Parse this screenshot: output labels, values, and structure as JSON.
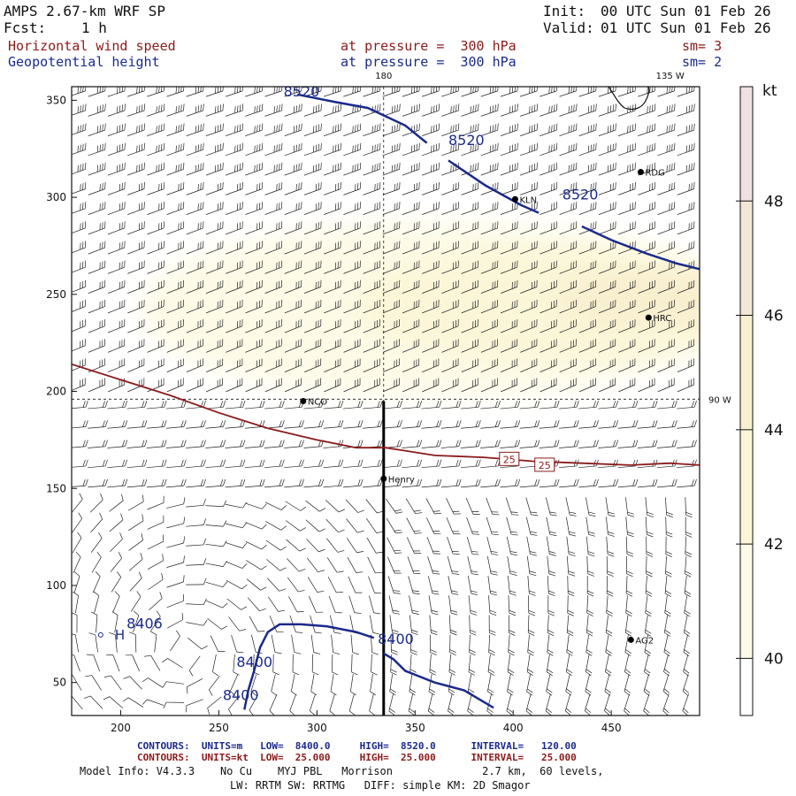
{
  "header": {
    "model_title": "AMPS 2.67-km WRF SP",
    "forecast_label": "Fcst:",
    "forecast_value": "1 h",
    "init_label": "Init:",
    "init_time": "00 UTC Sun 01 Feb 26",
    "valid_label": "Valid:",
    "valid_time": "01 UTC Sun 01 Feb 26",
    "field1_name": "Horizontal wind speed",
    "field1_level": "at pressure =  300 hPa",
    "field1_smooth": "sm= 3",
    "field2_name": "Geopotential height",
    "field2_level": "at pressure =  300 hPa",
    "field2_smooth": "sm= 2"
  },
  "colors": {
    "height_contour": "#1a2a8b",
    "speed_contour": "#8b1a1a",
    "shade_40": "#fdfbe6",
    "shade_42": "#fbf6d8",
    "shade_44": "#f8efcf",
    "shade_46": "#f3e6d6",
    "shade_48": "#efe0e2"
  },
  "chart_data": {
    "type": "contour-map",
    "x_ticks": [
      "200",
      "250",
      "300",
      "350",
      "400",
      "450"
    ],
    "y_ticks": [
      "50",
      "100",
      "150",
      "200",
      "250",
      "300",
      "350"
    ],
    "xlim": [
      175,
      495
    ],
    "ylim": [
      33,
      357
    ],
    "grid": false,
    "longitude_labels": [
      {
        "text": "180",
        "at_x": 334,
        "edge": "top"
      },
      {
        "text": "135 W",
        "at_x": 480,
        "edge": "top"
      },
      {
        "text": "90 W",
        "at_y": 196,
        "edge": "right"
      }
    ],
    "colorbar": {
      "unit": "kt",
      "ticks": [
        "40",
        "42",
        "44",
        "46",
        "48"
      ],
      "levels": [
        39,
        40,
        42,
        44,
        46,
        48,
        50
      ]
    },
    "wind_speed_shading": [
      {
        "level": 40,
        "x": 360,
        "y": 242,
        "rx": 150,
        "ry": 45
      },
      {
        "level": 42,
        "x": 420,
        "y": 245,
        "rx": 100,
        "ry": 30
      },
      {
        "level": 44,
        "x": 470,
        "y": 248,
        "rx": 50,
        "ry": 15
      }
    ],
    "height_contours": [
      {
        "value": 8520,
        "points": [
          [
            290,
            353
          ],
          [
            310,
            349
          ],
          [
            326,
            346
          ],
          [
            345,
            337
          ],
          [
            356,
            328
          ]
        ]
      },
      {
        "value": 8520,
        "points": [
          [
            367,
            319
          ],
          [
            386,
            306
          ],
          [
            404,
            296
          ],
          [
            413,
            292
          ]
        ]
      },
      {
        "value": 8520,
        "points": [
          [
            435,
            285
          ],
          [
            450,
            278
          ],
          [
            468,
            271
          ],
          [
            483,
            266
          ],
          [
            495,
            263
          ]
        ]
      },
      {
        "value": 8400,
        "points": [
          [
            263,
            36
          ],
          [
            265,
            46
          ],
          [
            268,
            56
          ],
          [
            271,
            68
          ],
          [
            275,
            76
          ],
          [
            281,
            80
          ],
          [
            292,
            80
          ],
          [
            305,
            79
          ],
          [
            320,
            76
          ],
          [
            329,
            73
          ]
        ]
      },
      {
        "value": 8400,
        "points": [
          [
            334,
            65
          ],
          [
            339,
            62
          ],
          [
            345,
            56
          ],
          [
            360,
            50
          ],
          [
            375,
            46
          ],
          [
            390,
            37
          ]
        ]
      }
    ],
    "height_labels": [
      {
        "text": "8520",
        "x": 283,
        "y": 352
      },
      {
        "text": "8520",
        "x": 367,
        "y": 327
      },
      {
        "text": "8520",
        "x": 425,
        "y": 299
      },
      {
        "text": "8400",
        "x": 331,
        "y": 70
      },
      {
        "text": "8406",
        "x": 203,
        "y": 78
      },
      {
        "text": "8400",
        "x": 259,
        "y": 58
      },
      {
        "text": "8400",
        "x": 252,
        "y": 41
      }
    ],
    "speed_contours": [
      {
        "value": 25,
        "points": [
          [
            175,
            214
          ],
          [
            200,
            206
          ],
          [
            225,
            198
          ],
          [
            250,
            189
          ],
          [
            275,
            181
          ],
          [
            300,
            175
          ],
          [
            320,
            171
          ],
          [
            335,
            171
          ],
          [
            360,
            167
          ],
          [
            385,
            166
          ],
          [
            410,
            164
          ],
          [
            435,
            163
          ],
          [
            460,
            162
          ],
          [
            480,
            163
          ],
          [
            495,
            162
          ]
        ]
      }
    ],
    "speed_labels": [
      {
        "text": "25",
        "x": 398,
        "y": 165
      },
      {
        "text": "25",
        "x": 416,
        "y": 162
      }
    ],
    "high_center": {
      "text": "H",
      "x": 197,
      "y": 75
    },
    "stations": [
      {
        "name": "RDG",
        "x": 465,
        "y": 313
      },
      {
        "name": "KLN",
        "x": 401,
        "y": 299
      },
      {
        "name": "HRC",
        "x": 469,
        "y": 238
      },
      {
        "name": "NCO",
        "x": 293,
        "y": 195
      },
      {
        "name": "Henry",
        "x": 334,
        "y": 155
      },
      {
        "name": "AG2",
        "x": 460,
        "y": 72
      }
    ],
    "reference_lines": {
      "vertical_dashed_x": 334,
      "horizontal_dashed_y": 196,
      "section_line": [
        [
          334,
          33
        ],
        [
          334,
          195
        ]
      ]
    }
  },
  "footer": {
    "height_contours_line": "CONTOURS:  UNITS=m   LOW=  8400.0     HIGH=  8520.0      INTERVAL=   120.00",
    "speed_contours_line": "CONTOURS:  UNITS=kt  LOW=  25.000     HIGH=  25.000      INTERVAL=   25.000",
    "model_info_line": "Model Info: V4.3.3    No Cu    MYJ PBL   Morrison              2.7 km,  60 levels,",
    "physics_line": "LW: RRTM SW: RRTMG   DIFF: simple KM: 2D Smagor"
  }
}
